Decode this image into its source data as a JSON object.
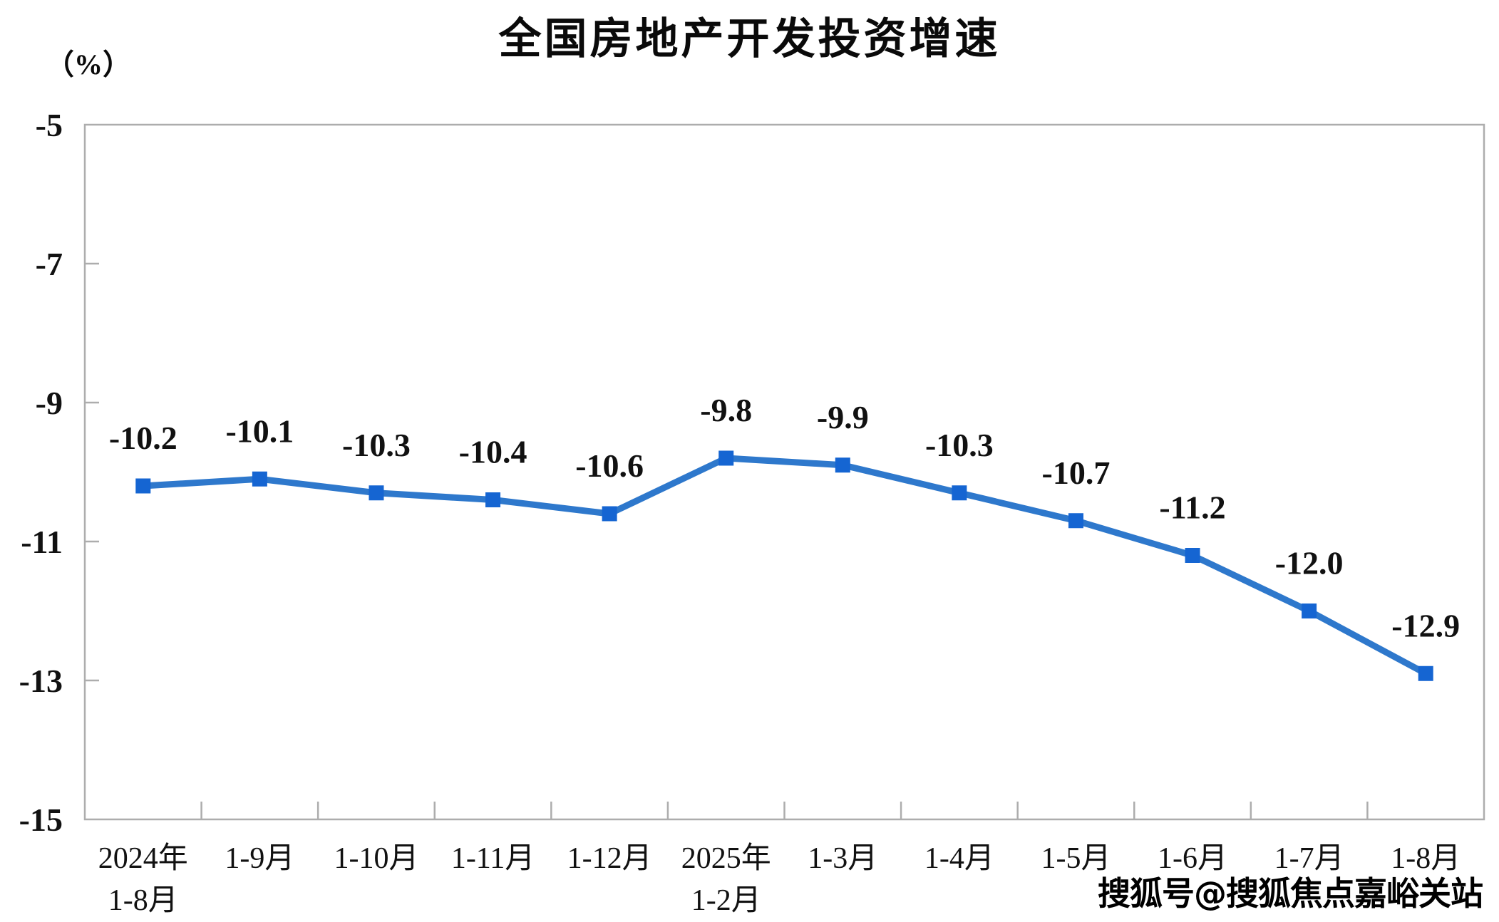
{
  "chart_data": {
    "type": "line",
    "title": "全国房地产开发投资增速",
    "unit_label": "（%）",
    "categories": [
      [
        "2024年",
        "1-8月"
      ],
      [
        "1-9月"
      ],
      [
        "1-10月"
      ],
      [
        "1-11月"
      ],
      [
        "1-12月"
      ],
      [
        "2025年",
        "1-2月"
      ],
      [
        "1-3月"
      ],
      [
        "1-4月"
      ],
      [
        "1-5月"
      ],
      [
        "1-6月"
      ],
      [
        "1-7月"
      ],
      [
        "1-8月"
      ]
    ],
    "values": [
      -10.2,
      -10.1,
      -10.3,
      -10.4,
      -10.6,
      -9.8,
      -9.9,
      -10.3,
      -10.7,
      -11.2,
      -12.0,
      -12.9
    ],
    "point_labels": [
      "-10.2",
      "-10.1",
      "-10.3",
      "-10.4",
      "-10.6",
      "-9.8",
      "-9.9",
      "-10.3",
      "-10.7",
      "-11.2",
      "-12.0",
      "-12.9"
    ],
    "y_ticks": [
      -5,
      -7,
      -9,
      -11,
      -13,
      -15
    ],
    "y_tick_labels": [
      "-5",
      "-7",
      "-9",
      "-11",
      "-13",
      "-15"
    ],
    "ylim": [
      -15,
      -5
    ],
    "grid": false,
    "legend": false,
    "marker_shape": "square",
    "colors": {
      "line": "#2E78CC",
      "marker": "#1565D2",
      "axis": "#ADADAD",
      "text": "#111111"
    }
  },
  "watermark": {
    "text": "搜狐号@搜狐焦点嘉峪关站"
  }
}
